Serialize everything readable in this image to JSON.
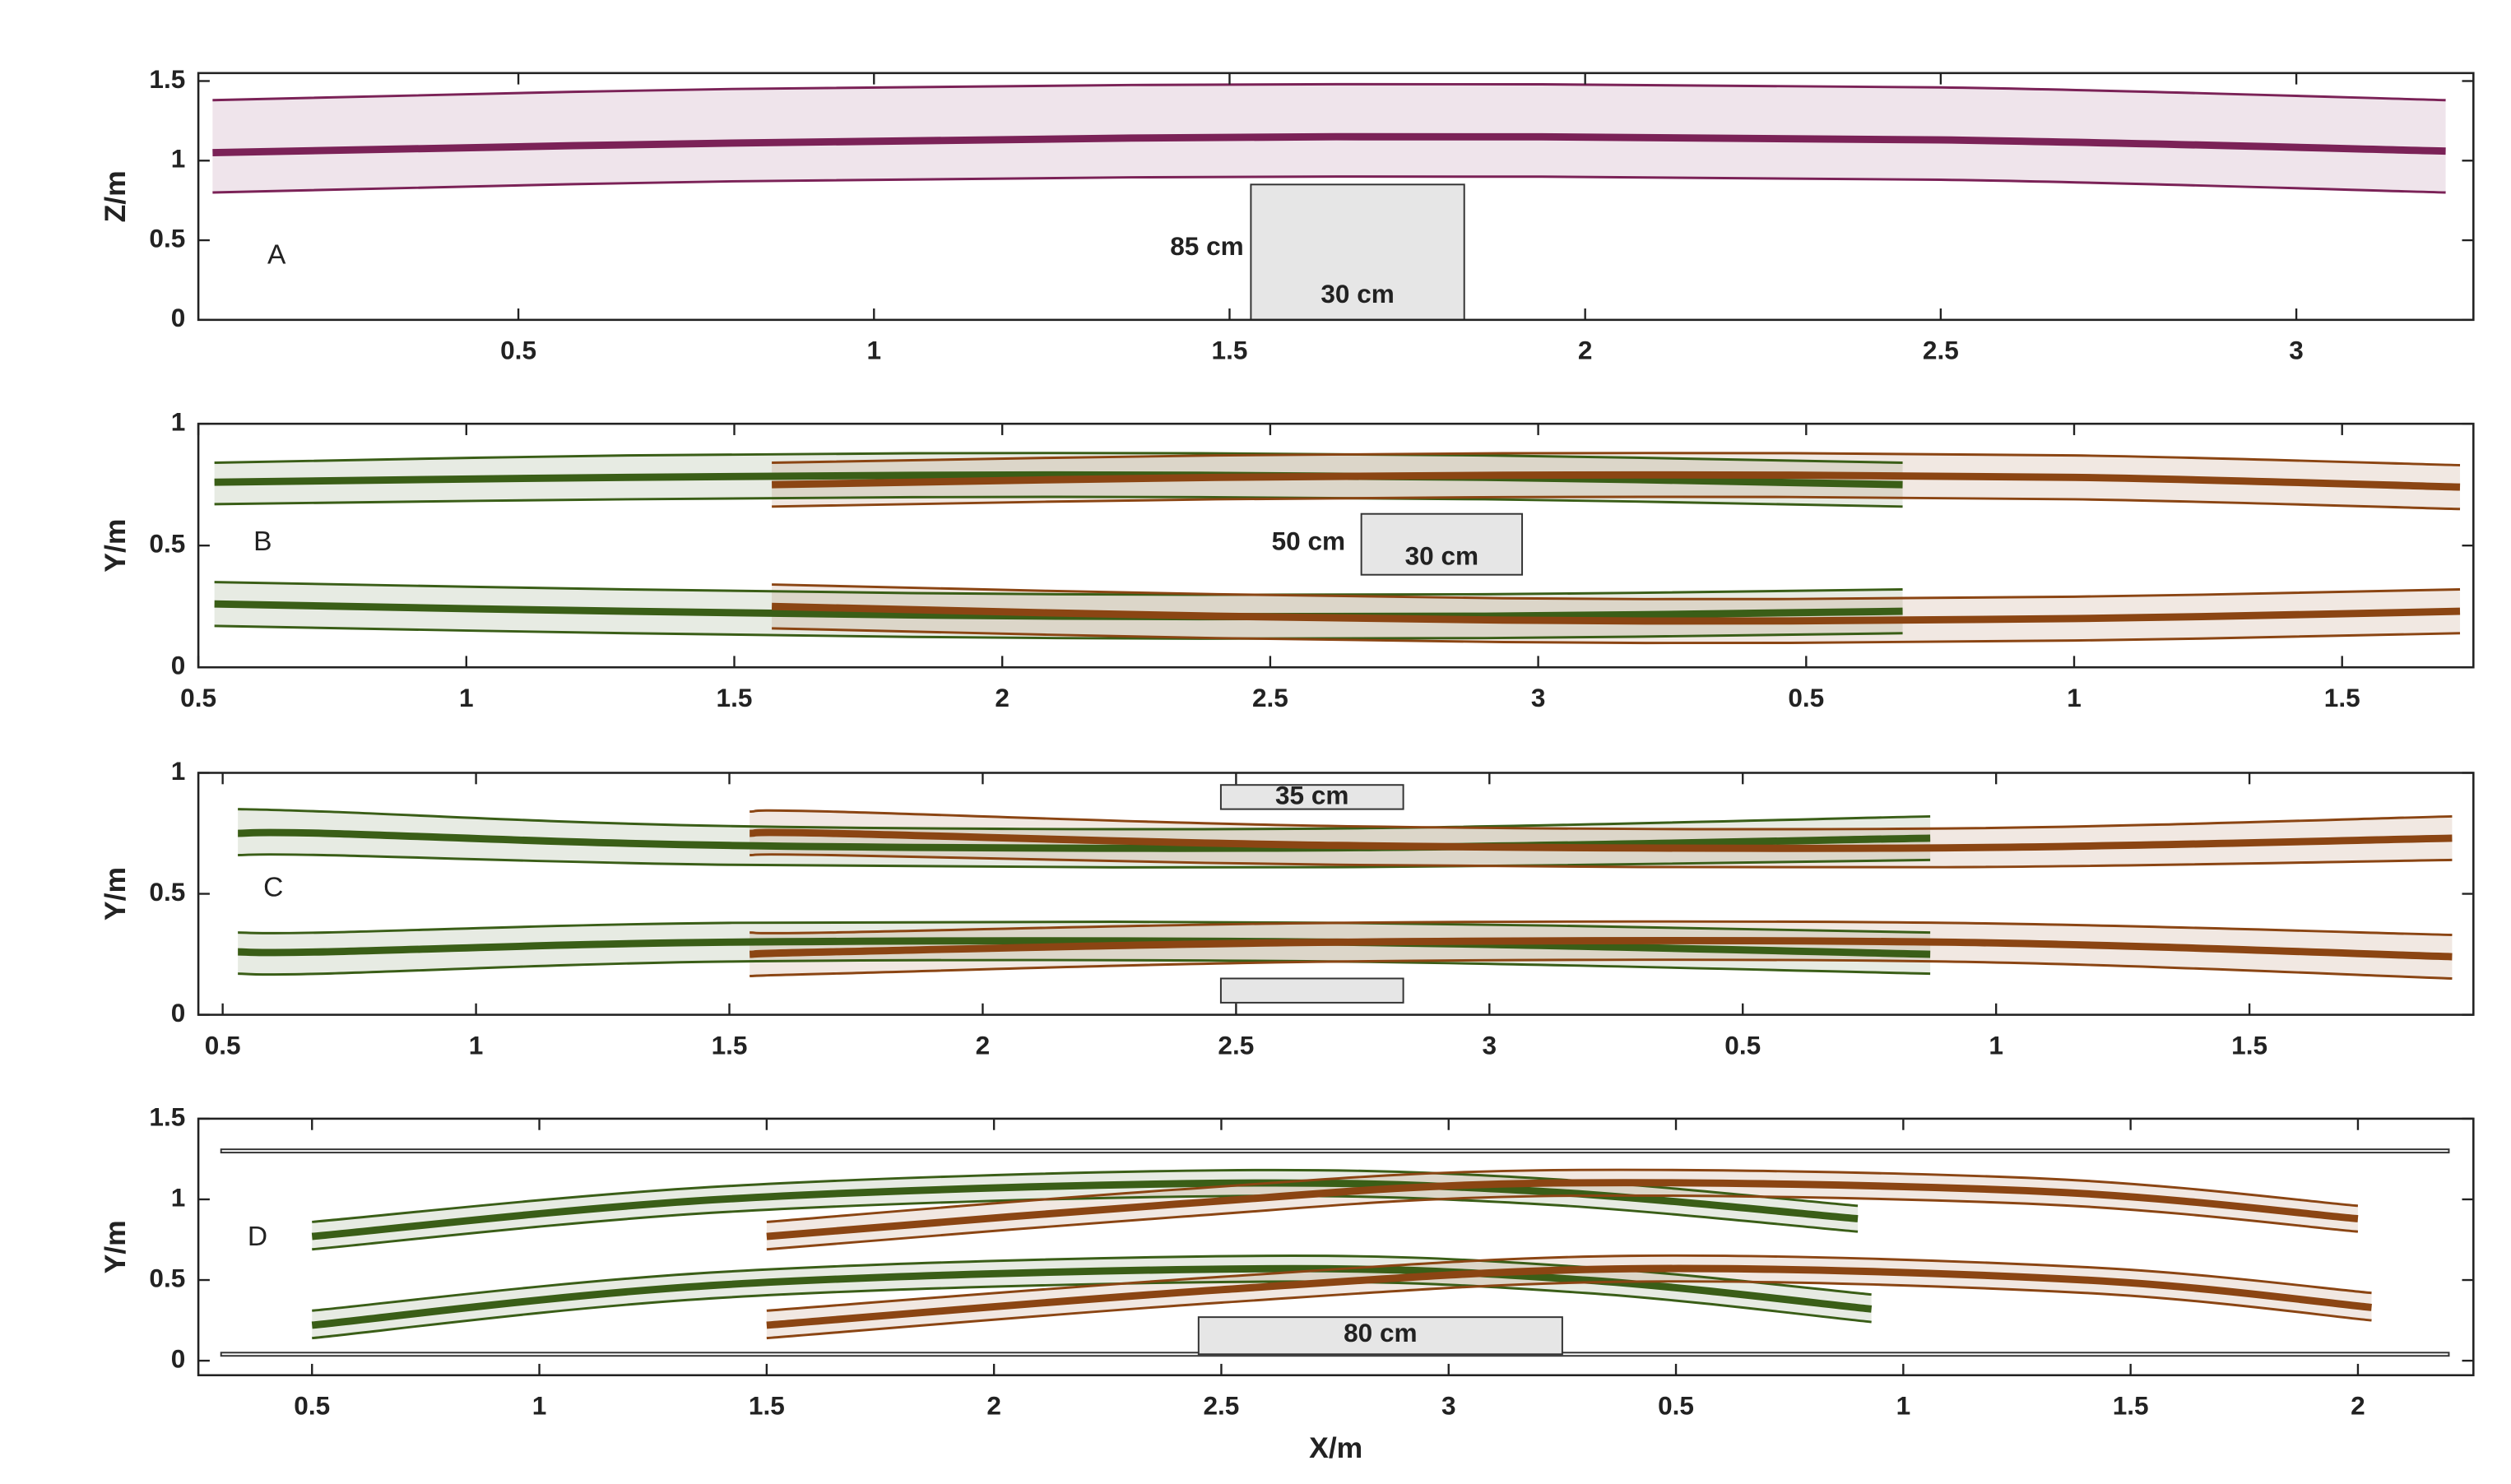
{
  "chart_data": [
    {
      "type": "line",
      "ylabel": "Z/m",
      "xlim": [
        0.05,
        3.249
      ],
      "ylim": [
        0,
        1.55
      ],
      "xticks": [
        0.5,
        1,
        1.5,
        2,
        2.5,
        3
      ],
      "yticks": [
        0,
        0.5,
        1,
        1.5
      ],
      "series": [
        {
          "color": "#7b2257",
          "x": [
            0.07,
            0.8,
            1.65,
            2.5,
            3.21
          ],
          "values": [
            1.05,
            1.11,
            1.15,
            1.13,
            1.06
          ],
          "upper": [
            1.38,
            1.45,
            1.48,
            1.46,
            1.38
          ],
          "lower": [
            0.8,
            0.87,
            0.9,
            0.88,
            0.8
          ]
        }
      ],
      "obstacles": [
        {
          "x": [
            1.53,
            1.83
          ],
          "y": [
            0,
            0.85
          ],
          "color": "#e6e6e6"
        }
      ],
      "annotations": [
        {
          "text": "A",
          "x": 0.16,
          "y": 0.4,
          "align": "middle"
        },
        {
          "text": "85 cm",
          "x": 1.52,
          "y": 0.45,
          "align": "end"
        },
        {
          "text": "30 cm",
          "x": 1.68,
          "y": 0.15,
          "align": "middle"
        }
      ]
    },
    {
      "type": "line",
      "ylabel": "Y/m",
      "xlim": [
        0.5,
        4.745
      ],
      "ylim": [
        0,
        1
      ],
      "xticks": [
        0.5,
        1,
        1.5,
        2,
        2.5,
        3,
        {
          "value": 3.5,
          "label": "0.5"
        },
        {
          "value": 4,
          "label": "1"
        },
        {
          "value": 4.5,
          "label": "1.5"
        }
      ],
      "yticks": [
        0,
        0.5,
        1
      ],
      "series": [
        {
          "color": "#3a5e17",
          "x": [
            0.53,
            1.3,
            2.1,
            2.9,
            3.68
          ],
          "values": [
            0.76,
            0.78,
            0.79,
            0.78,
            0.75
          ],
          "upper": [
            0.84,
            0.87,
            0.88,
            0.87,
            0.84
          ],
          "lower": [
            0.67,
            0.69,
            0.7,
            0.69,
            0.66
          ]
        },
        {
          "color": "#3a5e17",
          "x": [
            0.53,
            1.3,
            2.1,
            2.9,
            3.68
          ],
          "values": [
            0.26,
            0.23,
            0.21,
            0.21,
            0.23
          ],
          "upper": [
            0.35,
            0.32,
            0.3,
            0.3,
            0.32
          ],
          "lower": [
            0.17,
            0.14,
            0.12,
            0.12,
            0.14
          ]
        },
        {
          "color": "#8b4513",
          "x": [
            1.57,
            2.4,
            3.2,
            4.0,
            4.72
          ],
          "values": [
            0.75,
            0.78,
            0.79,
            0.78,
            0.74
          ],
          "upper": [
            0.84,
            0.87,
            0.88,
            0.87,
            0.83
          ],
          "lower": [
            0.66,
            0.69,
            0.7,
            0.69,
            0.65
          ]
        },
        {
          "color": "#8b4513",
          "x": [
            1.57,
            2.4,
            3.2,
            4.0,
            4.72
          ],
          "values": [
            0.25,
            0.21,
            0.19,
            0.2,
            0.23
          ],
          "upper": [
            0.34,
            0.3,
            0.28,
            0.29,
            0.32
          ],
          "lower": [
            0.16,
            0.12,
            0.1,
            0.11,
            0.14
          ]
        }
      ],
      "obstacles": [
        {
          "x": [
            2.67,
            2.97
          ],
          "y": [
            0.38,
            0.63
          ],
          "color": "#e6e6e6"
        }
      ],
      "annotations": [
        {
          "text": "B",
          "x": 0.62,
          "y": 0.51,
          "align": "middle"
        },
        {
          "text": "50 cm",
          "x": 2.64,
          "y": 0.51,
          "align": "end"
        },
        {
          "text": "30 cm",
          "x": 2.82,
          "y": 0.45,
          "align": "middle"
        }
      ]
    },
    {
      "type": "line",
      "ylabel": "Y/m",
      "xlim": [
        0.452,
        4.942
      ],
      "ylim": [
        0,
        1
      ],
      "xticks": [
        0.5,
        1,
        1.5,
        2,
        2.5,
        3,
        {
          "value": 3.5,
          "label": "0.5"
        },
        {
          "value": 4,
          "label": "1"
        },
        {
          "value": 4.5,
          "label": "1.5"
        }
      ],
      "yticks": [
        0,
        0.5,
        1
      ],
      "series": [
        {
          "color": "#3a5e17",
          "x": [
            0.53,
            0.7,
            1.5,
            2.7,
            3.87
          ],
          "values": [
            0.75,
            0.75,
            0.7,
            0.69,
            0.73
          ],
          "upper": [
            0.85,
            0.84,
            0.78,
            0.77,
            0.82
          ],
          "lower": [
            0.66,
            0.66,
            0.62,
            0.61,
            0.64
          ]
        },
        {
          "color": "#3a5e17",
          "x": [
            0.53,
            0.7,
            1.5,
            2.7,
            3.87
          ],
          "values": [
            0.26,
            0.26,
            0.3,
            0.3,
            0.25
          ],
          "upper": [
            0.34,
            0.34,
            0.38,
            0.38,
            0.34
          ],
          "lower": [
            0.17,
            0.17,
            0.22,
            0.22,
            0.17
          ]
        },
        {
          "color": "#8b4513",
          "x": [
            1.54,
            1.7,
            2.7,
            3.9,
            4.9
          ],
          "values": [
            0.75,
            0.75,
            0.7,
            0.69,
            0.73
          ],
          "upper": [
            0.84,
            0.84,
            0.78,
            0.77,
            0.82
          ],
          "lower": [
            0.66,
            0.66,
            0.62,
            0.61,
            0.64
          ]
        },
        {
          "color": "#8b4513",
          "x": [
            1.54,
            1.7,
            2.7,
            3.9,
            4.9
          ],
          "values": [
            0.25,
            0.26,
            0.3,
            0.3,
            0.24
          ],
          "upper": [
            0.34,
            0.34,
            0.38,
            0.38,
            0.33
          ],
          "lower": [
            0.16,
            0.17,
            0.22,
            0.22,
            0.15
          ]
        }
      ],
      "obstacles": [
        {
          "x": [
            2.47,
            2.83
          ],
          "y": [
            0.85,
            0.95
          ],
          "color": "#e6e6e6"
        },
        {
          "x": [
            2.47,
            2.83
          ],
          "y": [
            0.05,
            0.15
          ],
          "color": "#e6e6e6"
        }
      ],
      "annotations": [
        {
          "text": "C",
          "x": 0.6,
          "y": 0.52,
          "align": "middle"
        },
        {
          "text": "35 cm",
          "x": 2.65,
          "y": 0.9,
          "align": "middle"
        }
      ]
    },
    {
      "type": "line",
      "ylabel": "Y/m",
      "xlabel": "X/m",
      "xlim": [
        0.25,
        5.254
      ],
      "ylim": [
        -0.09,
        1.5
      ],
      "xticks": [
        0.5,
        1,
        1.5,
        2,
        2.5,
        3,
        {
          "value": 3.5,
          "label": "0.5"
        },
        {
          "value": 4,
          "label": "1"
        },
        {
          "value": 4.5,
          "label": "1.5"
        },
        {
          "value": 5,
          "label": "2"
        }
      ],
      "yticks": [
        0,
        0.5,
        1,
        1.5
      ],
      "series": [
        {
          "color": "#3a5e17",
          "x": [
            0.5,
            1.4,
            2.5,
            3.2,
            3.9
          ],
          "values": [
            0.77,
            1.0,
            1.1,
            1.05,
            0.88
          ],
          "upper": [
            0.86,
            1.08,
            1.18,
            1.13,
            0.96
          ],
          "lower": [
            0.69,
            0.92,
            1.02,
            0.97,
            0.8
          ]
        },
        {
          "color": "#3a5e17",
          "x": [
            0.5,
            1.4,
            2.6,
            3.3,
            3.93
          ],
          "values": [
            0.22,
            0.47,
            0.57,
            0.5,
            0.32
          ],
          "upper": [
            0.31,
            0.55,
            0.65,
            0.58,
            0.41
          ],
          "lower": [
            0.14,
            0.39,
            0.49,
            0.42,
            0.24
          ]
        },
        {
          "color": "#8b4513",
          "x": [
            1.5,
            2.4,
            3.2,
            4.3,
            5.0
          ],
          "values": [
            0.77,
            0.97,
            1.1,
            1.05,
            0.88
          ],
          "upper": [
            0.86,
            1.06,
            1.18,
            1.13,
            0.96
          ],
          "lower": [
            0.69,
            0.89,
            1.02,
            0.97,
            0.8
          ]
        },
        {
          "color": "#8b4513",
          "x": [
            1.5,
            2.5,
            3.4,
            4.4,
            5.03
          ],
          "values": [
            0.22,
            0.44,
            0.57,
            0.5,
            0.33
          ],
          "upper": [
            0.31,
            0.52,
            0.65,
            0.58,
            0.42
          ],
          "lower": [
            0.14,
            0.36,
            0.49,
            0.42,
            0.25
          ]
        }
      ],
      "obstacles": [
        {
          "x": [
            0.3,
            5.2
          ],
          "y": [
            1.29,
            1.31
          ],
          "color": "#ffffff"
        },
        {
          "x": [
            0.3,
            5.2
          ],
          "y": [
            0.03,
            0.05
          ],
          "color": "#ffffff"
        },
        {
          "x": [
            2.45,
            3.25
          ],
          "y": [
            0.04,
            0.27
          ],
          "color": "#e6e6e6"
        }
      ],
      "annotations": [
        {
          "text": "D",
          "x": 0.38,
          "y": 0.76,
          "align": "middle"
        },
        {
          "text": "80 cm",
          "x": 2.85,
          "y": 0.16,
          "align": "middle"
        }
      ]
    }
  ]
}
